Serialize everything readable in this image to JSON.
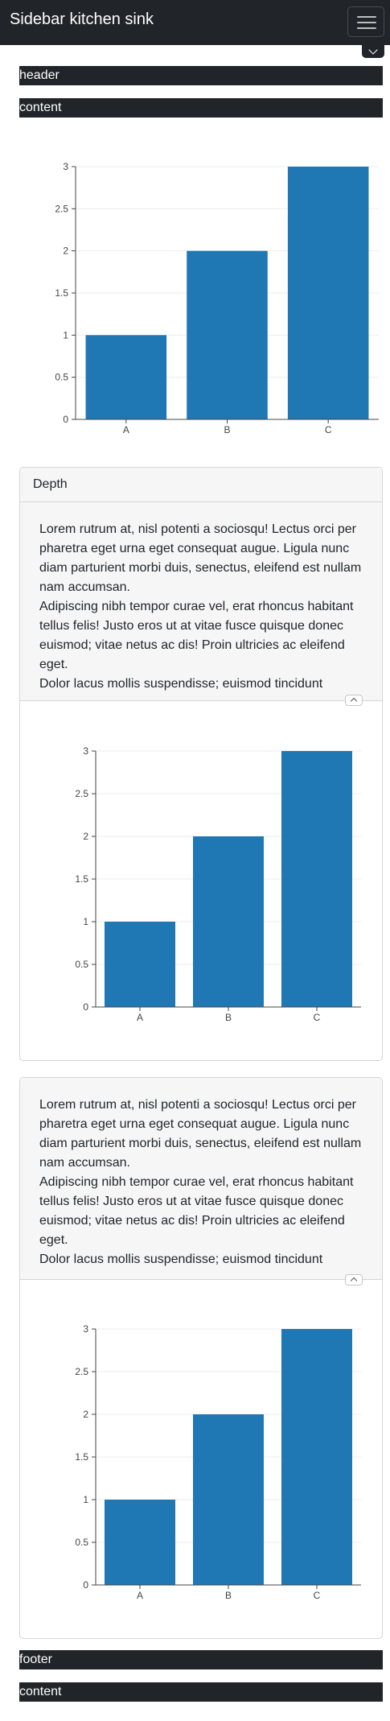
{
  "navbar": {
    "title": "Sidebar kitchen sink",
    "menu_icon": "hamburger-icon",
    "dropdown_icon": "chevron-down-icon"
  },
  "strips": {
    "header": "header",
    "content_top": "content",
    "footer": "footer",
    "content_bottom": "content"
  },
  "card1": {
    "header": "Depth",
    "paragraphs": [
      "Lorem rutrum at, nisl potenti a sociosqu! Lectus orci per pharetra eget urna eget consequat augue. Ligula nunc diam parturient morbi duis, senectus, eleifend est nullam nam accumsan.",
      "Adipiscing nibh tempor curae vel, erat rhoncus habitant tellus felis! Justo eros ut at vitae fusce quisque donec euismod; vitae netus ac dis! Proin ultricies ac eleifend eget.",
      "Dolor lacus mollis suspendisse; euismod tincidunt"
    ],
    "collapse_icon": "chevron-up-icon"
  },
  "card2": {
    "paragraphs": [
      "Lorem rutrum at, nisl potenti a sociosqu! Lectus orci per pharetra eget urna eget consequat augue. Ligula nunc diam parturient morbi duis, senectus, eleifend est nullam nam accumsan.",
      "Adipiscing nibh tempor curae vel, erat rhoncus habitant tellus felis! Justo eros ut at vitae fusce quisque donec euismod; vitae netus ac dis! Proin ultricies ac eleifend eget.",
      "Dolor lacus mollis suspendisse; euismod tincidunt"
    ],
    "collapse_icon": "chevron-up-icon"
  },
  "colors": {
    "bar": "#1f77b4",
    "dark": "#212529",
    "grid": "#eeeeee"
  },
  "chart_data": [
    {
      "type": "bar",
      "categories": [
        "A",
        "B",
        "C"
      ],
      "values": [
        1,
        2,
        3
      ],
      "ylim": [
        0,
        3
      ],
      "yticks": [
        "0",
        "0.5",
        "1",
        "1.5",
        "2",
        "2.5",
        "3"
      ],
      "grid": true
    },
    {
      "type": "bar",
      "categories": [
        "A",
        "B",
        "C"
      ],
      "values": [
        1,
        2,
        3
      ],
      "ylim": [
        0,
        3
      ],
      "yticks": [
        "0",
        "0.5",
        "1",
        "1.5",
        "2",
        "2.5",
        "3"
      ],
      "grid": true
    },
    {
      "type": "bar",
      "categories": [
        "A",
        "B",
        "C"
      ],
      "values": [
        1,
        2,
        3
      ],
      "ylim": [
        0,
        3
      ],
      "yticks": [
        "0",
        "0.5",
        "1",
        "1.5",
        "2",
        "2.5",
        "3"
      ],
      "grid": true
    }
  ]
}
